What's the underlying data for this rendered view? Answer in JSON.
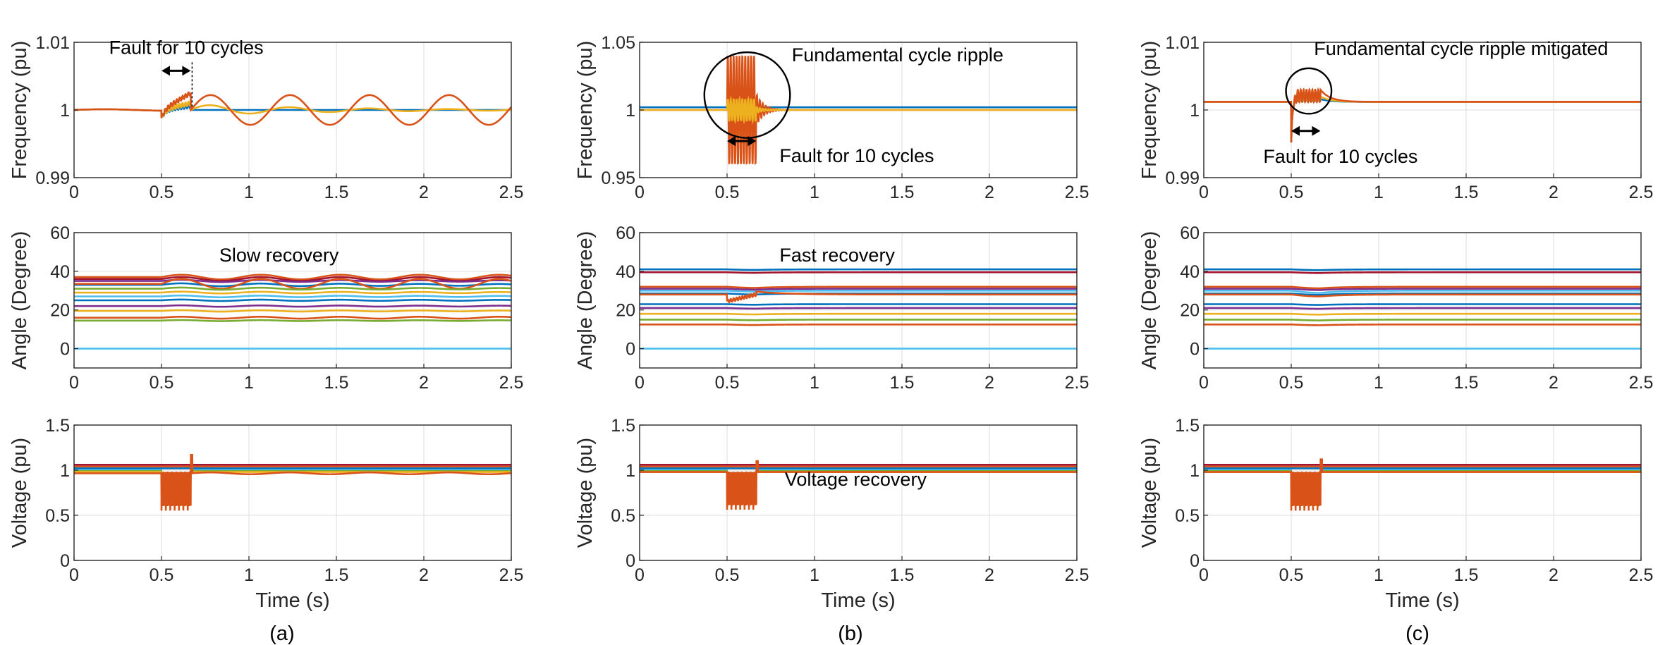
{
  "figure": {
    "captions": [
      "(a)",
      "(b)",
      "(c)"
    ]
  },
  "colors": {
    "axis": "#262626",
    "grid": "#dcdcdc",
    "palette": [
      "#0072BD",
      "#D95319",
      "#EDB120",
      "#7E2F8E",
      "#77AC30",
      "#4DBEEE",
      "#A2142F"
    ]
  },
  "chart_data": [
    {
      "id": "a-frequency",
      "type": "line",
      "column": 0,
      "row": 0,
      "xlabel": "",
      "ylabel": "Frequency (pu)",
      "xlim": [
        0,
        2.5
      ],
      "ylim": [
        0.99,
        1.01
      ],
      "xticks": [
        0,
        0.5,
        1,
        1.5,
        2,
        2.5
      ],
      "xtick_labels": [
        "0",
        "0.5",
        "1",
        "1.5",
        "2",
        "2.5"
      ],
      "yticks": [
        0.99,
        1,
        1.01
      ],
      "ytick_labels": [
        "0.99",
        "1",
        "1.01"
      ],
      "grid": true,
      "fault_start": 0.5,
      "fault_end": 0.667,
      "series": [
        {
          "color": "#0072BD",
          "kind": "freq",
          "base": 1.0,
          "amp": 0.0,
          "damp": 0.8,
          "freq_hz": 0,
          "fault_spike": 0.0006
        },
        {
          "color": "#EDB120",
          "kind": "freq",
          "base": 1.0,
          "amp": 0.0008,
          "damp": 1.2,
          "freq_hz": 2.2,
          "fault_spike": 0.001
        },
        {
          "color": "#D95319",
          "kind": "freq",
          "base": 1.0,
          "amp": 0.0022,
          "damp": 0.0,
          "freq_hz": 2.2,
          "fault_spike": 0.0025
        }
      ],
      "annotations": [
        {
          "text": "Fault for 10 cycles",
          "x": 0.2,
          "y": 1.0083
        },
        {
          "arrow": [
            0.5,
            0.667
          ],
          "y": 1.0058
        }
      ]
    },
    {
      "id": "a-angle",
      "type": "line",
      "column": 0,
      "row": 1,
      "xlabel": "",
      "ylabel": "Angle (Degree)",
      "xlim": [
        0,
        2.5
      ],
      "ylim": [
        -10,
        60
      ],
      "xticks": [
        0,
        0.5,
        1,
        1.5,
        2,
        2.5
      ],
      "xtick_labels": [
        "0",
        "0.5",
        "1",
        "1.5",
        "2",
        "2.5"
      ],
      "yticks": [
        0,
        20,
        40,
        60
      ],
      "ytick_labels": [
        "0",
        "20",
        "40",
        "60"
      ],
      "grid": true,
      "fault_start": 0.5,
      "fault_end": 0.667,
      "series": [
        {
          "color": "#D95319",
          "kind": "angle",
          "base": 37,
          "amp": 1.2,
          "damp": 0.0,
          "freq_hz": 2.2
        },
        {
          "color": "#A2142F",
          "kind": "angle",
          "base": 36,
          "amp": 1.0,
          "damp": 0.0,
          "freq_hz": 2.2
        },
        {
          "color": "#7E2F8E",
          "kind": "angle",
          "base": 35,
          "amp": 0.6,
          "damp": 0.3,
          "freq_hz": 2.2
        },
        {
          "color": "#0072BD",
          "kind": "angle",
          "base": 33,
          "amp": 0.8,
          "damp": 0.3,
          "freq_hz": 2.2
        },
        {
          "color": "#D95319",
          "kind": "angle",
          "base": 33.5,
          "amp": 2.5,
          "damp": 0.0,
          "freq_hz": 2.2
        },
        {
          "color": "#77AC30",
          "kind": "angle",
          "base": 31,
          "amp": 0.6,
          "damp": 0.3,
          "freq_hz": 2.2
        },
        {
          "color": "#EDB120",
          "kind": "angle",
          "base": 29,
          "amp": 0.5,
          "damp": 0.3,
          "freq_hz": 2.2
        },
        {
          "color": "#4DBEEE",
          "kind": "angle",
          "base": 27,
          "amp": 0.5,
          "damp": 0.3,
          "freq_hz": 2.2
        },
        {
          "color": "#0072BD",
          "kind": "angle",
          "base": 25,
          "amp": 0.4,
          "damp": 0.3,
          "freq_hz": 2.2
        },
        {
          "color": "#7E2F8E",
          "kind": "angle",
          "base": 22,
          "amp": 0.4,
          "damp": 0.3,
          "freq_hz": 2.2
        },
        {
          "color": "#EDB120",
          "kind": "angle",
          "base": 19.5,
          "amp": 0.4,
          "damp": 0.3,
          "freq_hz": 2.2
        },
        {
          "color": "#D95319",
          "kind": "angle",
          "base": 16,
          "amp": 0.5,
          "damp": 0.0,
          "freq_hz": 2.2
        },
        {
          "color": "#77AC30",
          "kind": "angle",
          "base": 14.5,
          "amp": 0.3,
          "damp": 0.3,
          "freq_hz": 2.2
        },
        {
          "color": "#4DBEEE",
          "kind": "angle",
          "base": 0,
          "amp": 0,
          "damp": 0,
          "freq_hz": 0
        }
      ],
      "annotations": [
        {
          "text": "Slow recovery",
          "x": 0.83,
          "y": 45
        }
      ]
    },
    {
      "id": "a-voltage",
      "type": "line",
      "column": 0,
      "row": 2,
      "xlabel": "Time (s)",
      "ylabel": "Voltage (pu)",
      "xlim": [
        0,
        2.5
      ],
      "ylim": [
        0,
        1.5
      ],
      "xticks": [
        0,
        0.5,
        1,
        1.5,
        2,
        2.5
      ],
      "xtick_labels": [
        "0",
        "0.5",
        "1",
        "1.5",
        "2",
        "2.5"
      ],
      "yticks": [
        0,
        0.5,
        1,
        1.5
      ],
      "ytick_labels": [
        "0",
        "0.5",
        "1",
        "1.5"
      ],
      "grid": true,
      "fault_start": 0.5,
      "fault_end": 0.667,
      "series": [
        {
          "color": "#A2142F",
          "kind": "volt",
          "base": 1.06,
          "dip": 1.0
        },
        {
          "color": "#D95319",
          "kind": "volt",
          "base": 1.04,
          "dip": 1.0
        },
        {
          "color": "#0072BD",
          "kind": "volt",
          "base": 1.02,
          "dip": 1.0
        },
        {
          "color": "#4DBEEE",
          "kind": "volt",
          "base": 1.0,
          "dip": 0.97
        },
        {
          "color": "#77AC30",
          "kind": "volt",
          "base": 0.99,
          "dip": 0.97
        },
        {
          "color": "#EDB120",
          "kind": "volt",
          "base": 0.98,
          "dip": 0.9
        },
        {
          "color": "#D95319",
          "kind": "volt-fault",
          "base": 0.965,
          "dip": 0.55,
          "spike": 1.17
        }
      ],
      "annotations": []
    },
    {
      "id": "b-frequency",
      "type": "line",
      "column": 1,
      "row": 0,
      "xlabel": "",
      "ylabel": "Frequency (pu)",
      "xlim": [
        0,
        2.5
      ],
      "ylim": [
        0.95,
        1.05
      ],
      "xticks": [
        0,
        0.5,
        1,
        1.5,
        2,
        2.5
      ],
      "xtick_labels": [
        "0",
        "0.5",
        "1",
        "1.5",
        "2",
        "2.5"
      ],
      "yticks": [
        0.95,
        1,
        1.05
      ],
      "ytick_labels": [
        "0.95",
        "1",
        "1.05"
      ],
      "grid": true,
      "fault_start": 0.5,
      "fault_end": 0.667,
      "series": [
        {
          "color": "#0072BD",
          "kind": "ripple",
          "base": 1.002,
          "amp": 0.002
        },
        {
          "color": "#D95319",
          "kind": "ripple",
          "base": 1.0,
          "amp": 0.04
        },
        {
          "color": "#EDB120",
          "kind": "ripple",
          "base": 1.0,
          "amp": 0.008
        }
      ],
      "annotations": [
        {
          "text": "Fundamental cycle ripple",
          "x": 0.87,
          "y": 1.036
        },
        {
          "text": "Fault for 10 cycles",
          "x": 0.8,
          "y": 0.9615
        },
        {
          "arrow": [
            0.5,
            0.667
          ],
          "y": 0.977
        },
        {
          "circle": [
            0.615,
            1.011
          ],
          "r_x": 0.245
        }
      ]
    },
    {
      "id": "b-angle",
      "type": "line",
      "column": 1,
      "row": 1,
      "xlabel": "",
      "ylabel": "Angle (Degree)",
      "xlim": [
        0,
        2.5
      ],
      "ylim": [
        -10,
        60
      ],
      "xticks": [
        0,
        0.5,
        1,
        1.5,
        2,
        2.5
      ],
      "xtick_labels": [
        "0",
        "0.5",
        "1",
        "1.5",
        "2",
        "2.5"
      ],
      "yticks": [
        0,
        20,
        40,
        60
      ],
      "ytick_labels": [
        "0",
        "20",
        "40",
        "60"
      ],
      "grid": true,
      "fault_start": 0.5,
      "fault_end": 0.667,
      "series": [
        {
          "color": "#0072BD",
          "kind": "angle-fast",
          "base": 41,
          "dev": 0.3
        },
        {
          "color": "#A2142F",
          "kind": "angle-fast",
          "base": 39.5,
          "dev": 0.3
        },
        {
          "color": "#D95319",
          "kind": "angle-fast",
          "base": 32,
          "dev": 0.6
        },
        {
          "color": "#7E2F8E",
          "kind": "angle-fast",
          "base": 31,
          "dev": 0.5
        },
        {
          "color": "#4DBEEE",
          "kind": "angle-fast",
          "base": 30,
          "dev": 0.5
        },
        {
          "color": "#0072BD",
          "kind": "angle-fast",
          "base": 28.5,
          "dev": 0.5
        },
        {
          "color": "#D95319",
          "kind": "angle-fault",
          "base": 28,
          "dev": 3.5
        },
        {
          "color": "#0072BD",
          "kind": "angle-fast",
          "base": 23,
          "dev": 0.3
        },
        {
          "color": "#7E2F8E",
          "kind": "angle-fast",
          "base": 21,
          "dev": 0.3
        },
        {
          "color": "#EDB120",
          "kind": "angle-fast",
          "base": 18,
          "dev": 0.3
        },
        {
          "color": "#77AC30",
          "kind": "angle-fast",
          "base": 15,
          "dev": 0.3
        },
        {
          "color": "#D95319",
          "kind": "angle-fast",
          "base": 12.5,
          "dev": 0.3
        },
        {
          "color": "#4DBEEE",
          "kind": "angle-fast",
          "base": 0,
          "dev": 0
        }
      ],
      "annotations": [
        {
          "text": "Fast recovery",
          "x": 0.8,
          "y": 45
        }
      ]
    },
    {
      "id": "b-voltage",
      "type": "line",
      "column": 1,
      "row": 2,
      "xlabel": "Time (s)",
      "ylabel": "Voltage (pu)",
      "xlim": [
        0,
        2.5
      ],
      "ylim": [
        0,
        1.5
      ],
      "xticks": [
        0,
        0.5,
        1,
        1.5,
        2,
        2.5
      ],
      "xtick_labels": [
        "0",
        "0.5",
        "1",
        "1.5",
        "2",
        "2.5"
      ],
      "yticks": [
        0,
        0.5,
        1,
        1.5
      ],
      "ytick_labels": [
        "0",
        "0.5",
        "1",
        "1.5"
      ],
      "grid": true,
      "fault_start": 0.5,
      "fault_end": 0.667,
      "series": [
        {
          "color": "#A2142F",
          "kind": "volt",
          "base": 1.06,
          "dip": 1.0
        },
        {
          "color": "#D95319",
          "kind": "volt",
          "base": 1.04,
          "dip": 1.0
        },
        {
          "color": "#0072BD",
          "kind": "volt",
          "base": 1.02,
          "dip": 1.0
        },
        {
          "color": "#4DBEEE",
          "kind": "volt",
          "base": 1.0,
          "dip": 0.97
        },
        {
          "color": "#77AC30",
          "kind": "volt",
          "base": 0.99,
          "dip": 0.97
        },
        {
          "color": "#EDB120",
          "kind": "volt",
          "base": 0.98,
          "dip": 0.9
        },
        {
          "color": "#D95319",
          "kind": "volt-fault",
          "base": 0.98,
          "dip": 0.56,
          "spike": 1.1
        }
      ],
      "annotations": [
        {
          "text": "Voltage recovery",
          "x": 0.83,
          "y": 0.83
        }
      ]
    },
    {
      "id": "c-frequency",
      "type": "line",
      "column": 2,
      "row": 0,
      "xlabel": "",
      "ylabel": "Frequency (pu)",
      "xlim": [
        0,
        2.5
      ],
      "ylim": [
        0.99,
        1.01
      ],
      "xticks": [
        0,
        0.5,
        1,
        1.5,
        2,
        2.5
      ],
      "xtick_labels": [
        "0",
        "0.5",
        "1",
        "1.5",
        "2",
        "2.5"
      ],
      "yticks": [
        0.99,
        1,
        1.01
      ],
      "ytick_labels": [
        "0.99",
        "1",
        "1.01"
      ],
      "grid": true,
      "fault_start": 0.5,
      "fault_end": 0.667,
      "series": [
        {
          "color": "#0072BD",
          "kind": "mitigated",
          "base": 1.0012,
          "amp": 0.0004
        },
        {
          "color": "#EDB120",
          "kind": "mitigated",
          "base": 1.0012,
          "amp": 0.0008
        },
        {
          "color": "#D95319",
          "kind": "mitigated",
          "base": 1.0012,
          "amp": 0.0018
        }
      ],
      "annotations": [
        {
          "text": "Fundamental cycle ripple mitigated",
          "x": 0.63,
          "y": 1.0081
        },
        {
          "text": "Fault for 10 cycles",
          "x": 0.34,
          "y": 0.9922
        },
        {
          "arrow": [
            0.5,
            0.667
          ],
          "y": 0.9969
        },
        {
          "circle": [
            0.6,
            1.0028
          ],
          "r_x": 0.13
        }
      ]
    },
    {
      "id": "c-angle",
      "type": "line",
      "column": 2,
      "row": 1,
      "xlabel": "",
      "ylabel": "Angle (Degree)",
      "xlim": [
        0,
        2.5
      ],
      "ylim": [
        -10,
        60
      ],
      "xticks": [
        0,
        0.5,
        1,
        1.5,
        2,
        2.5
      ],
      "xtick_labels": [
        "0",
        "0.5",
        "1",
        "1.5",
        "2",
        "2.5"
      ],
      "yticks": [
        0,
        20,
        40,
        60
      ],
      "ytick_labels": [
        "0",
        "20",
        "40",
        "60"
      ],
      "grid": true,
      "fault_start": 0.5,
      "fault_end": 0.667,
      "series": [
        {
          "color": "#0072BD",
          "kind": "angle-fast",
          "base": 41,
          "dev": 0.4
        },
        {
          "color": "#A2142F",
          "kind": "angle-fast",
          "base": 39.5,
          "dev": 0.4
        },
        {
          "color": "#D95319",
          "kind": "angle-fast",
          "base": 32,
          "dev": 0.8
        },
        {
          "color": "#7E2F8E",
          "kind": "angle-fast",
          "base": 31,
          "dev": 0.7
        },
        {
          "color": "#4DBEEE",
          "kind": "angle-fast",
          "base": 30,
          "dev": 1.2
        },
        {
          "color": "#0072BD",
          "kind": "angle-fast",
          "base": 28.5,
          "dev": 0.7
        },
        {
          "color": "#D95319",
          "kind": "angle-fast",
          "base": 28,
          "dev": 1.0
        },
        {
          "color": "#0072BD",
          "kind": "angle-fast",
          "base": 23,
          "dev": 0.4
        },
        {
          "color": "#7E2F8E",
          "kind": "angle-fast",
          "base": 21,
          "dev": 0.4
        },
        {
          "color": "#EDB120",
          "kind": "angle-fast",
          "base": 18,
          "dev": 0.4
        },
        {
          "color": "#77AC30",
          "kind": "angle-fast",
          "base": 15,
          "dev": 0.4
        },
        {
          "color": "#D95319",
          "kind": "angle-fast",
          "base": 12.5,
          "dev": 0.4
        },
        {
          "color": "#4DBEEE",
          "kind": "angle-fast",
          "base": 0,
          "dev": 0
        }
      ],
      "annotations": []
    },
    {
      "id": "c-voltage",
      "type": "line",
      "column": 2,
      "row": 2,
      "xlabel": "Time (s)",
      "ylabel": "Voltage (pu)",
      "xlim": [
        0,
        2.5
      ],
      "ylim": [
        0,
        1.5
      ],
      "xticks": [
        0,
        0.5,
        1,
        1.5,
        2,
        2.5
      ],
      "xtick_labels": [
        "0",
        "0.5",
        "1",
        "1.5",
        "2",
        "2.5"
      ],
      "yticks": [
        0,
        0.5,
        1,
        1.5
      ],
      "ytick_labels": [
        "0",
        "0.5",
        "1",
        "1.5"
      ],
      "grid": true,
      "fault_start": 0.5,
      "fault_end": 0.667,
      "series": [
        {
          "color": "#A2142F",
          "kind": "volt",
          "base": 1.06,
          "dip": 1.0
        },
        {
          "color": "#D95319",
          "kind": "volt",
          "base": 1.04,
          "dip": 1.0
        },
        {
          "color": "#0072BD",
          "kind": "volt",
          "base": 1.02,
          "dip": 1.0
        },
        {
          "color": "#4DBEEE",
          "kind": "volt",
          "base": 1.0,
          "dip": 0.97
        },
        {
          "color": "#77AC30",
          "kind": "volt",
          "base": 0.99,
          "dip": 0.97
        },
        {
          "color": "#EDB120",
          "kind": "volt",
          "base": 0.98,
          "dip": 0.9
        },
        {
          "color": "#D95319",
          "kind": "volt-fault",
          "base": 0.98,
          "dip": 0.55,
          "spike": 1.12
        }
      ],
      "annotations": []
    }
  ]
}
